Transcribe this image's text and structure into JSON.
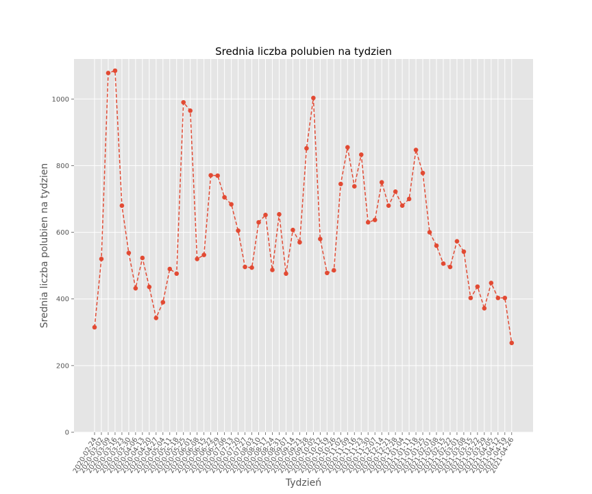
{
  "chart_data": {
    "type": "line",
    "title": "Srednia liczba polubien na tydzien",
    "xlabel": "Tydzień",
    "ylabel": "Srednia liczba polubien na tydzien",
    "ylim": [
      0,
      1120
    ],
    "yticks": [
      0,
      200,
      400,
      600,
      800,
      1000
    ],
    "grid": true,
    "line_style": "dashed",
    "marker": "circle",
    "colors": {
      "series": "#e24a33",
      "plot_bg": "#e5e5e5",
      "grid": "#ffffff"
    },
    "categories": [
      "2020-02-24",
      "2020-03-02",
      "2020-03-09",
      "2020-03-16",
      "2020-03-23",
      "2020-03-30",
      "2020-04-06",
      "2020-04-13",
      "2020-04-20",
      "2020-04-27",
      "2020-05-04",
      "2020-05-11",
      "2020-05-18",
      "2020-05-25",
      "2020-06-01",
      "2020-06-08",
      "2020-06-15",
      "2020-06-22",
      "2020-06-29",
      "2020-07-06",
      "2020-07-13",
      "2020-07-20",
      "2020-07-27",
      "2020-08-03",
      "2020-08-10",
      "2020-08-17",
      "2020-08-24",
      "2020-08-31",
      "2020-09-07",
      "2020-09-14",
      "2020-09-21",
      "2020-09-28",
      "2020-10-05",
      "2020-10-12",
      "2020-10-19",
      "2020-10-26",
      "2020-11-02",
      "2020-11-09",
      "2020-11-16",
      "2020-11-23",
      "2020-11-30",
      "2020-12-07",
      "2020-12-14",
      "2020-12-21",
      "2020-12-28",
      "2021-01-04",
      "2021-01-11",
      "2021-01-18",
      "2021-01-25",
      "2021-02-01",
      "2021-02-08",
      "2021-02-15",
      "2021-02-22",
      "2021-03-01",
      "2021-03-08",
      "2021-03-15",
      "2021-03-22",
      "2021-03-29",
      "2021-04-05",
      "2021-04-12",
      "2021-04-19",
      "2021-04-26"
    ],
    "series": [
      {
        "values": [
          315,
          520,
          1078,
          1085,
          680,
          538,
          432,
          523,
          436,
          343,
          390,
          490,
          476,
          990,
          965,
          520,
          532,
          771,
          770,
          705,
          684,
          605,
          496,
          494,
          630,
          652,
          487,
          654,
          476,
          607,
          570,
          852,
          1003,
          580,
          478,
          486,
          745,
          855,
          738,
          833,
          630,
          637,
          750,
          680,
          722,
          680,
          700,
          847,
          778,
          600,
          560,
          506,
          496,
          573,
          542,
          403,
          437,
          372,
          448,
          403,
          403,
          268
        ]
      }
    ]
  }
}
